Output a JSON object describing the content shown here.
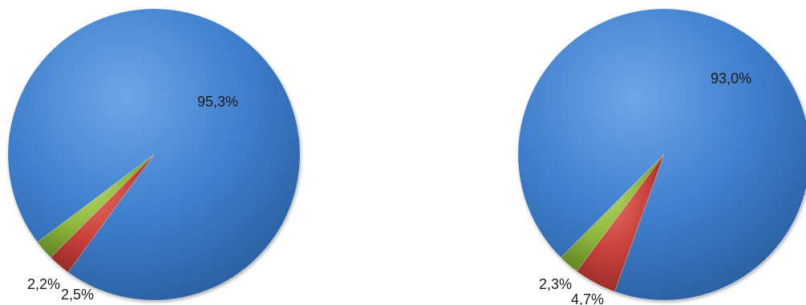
{
  "colors": {
    "blue": "#3f7fce",
    "red": "#c9403a",
    "green": "#8db63c"
  },
  "chart_data": [
    {
      "type": "pie",
      "title": "",
      "slices": [
        {
          "value": 95.3,
          "label": "95,3%",
          "color": "blue"
        },
        {
          "value": 2.5,
          "label": "2,5%",
          "color": "red"
        },
        {
          "value": 2.2,
          "label": "2,2%",
          "color": "green"
        }
      ],
      "legend": "none"
    },
    {
      "type": "pie",
      "title": "",
      "slices": [
        {
          "value": 93.0,
          "label": "93,0%",
          "color": "blue"
        },
        {
          "value": 4.7,
          "label": "4,7%",
          "color": "red"
        },
        {
          "value": 2.3,
          "label": "2,3%",
          "color": "green"
        }
      ],
      "legend": "none"
    }
  ]
}
